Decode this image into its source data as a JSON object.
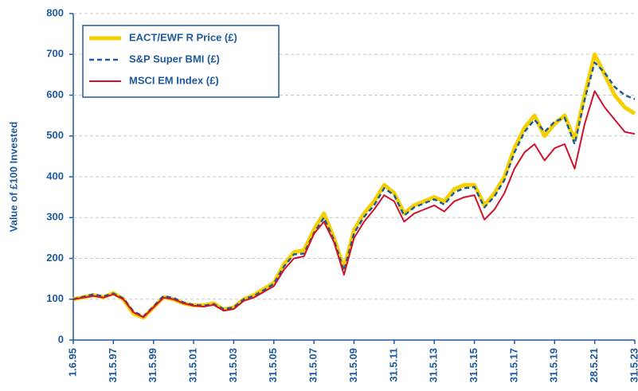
{
  "chart_data": {
    "type": "line",
    "ylabel": "Value of £100 Invested",
    "categories": [
      "1.6.95",
      null,
      null,
      null,
      "31.5.97",
      null,
      null,
      null,
      "31.5.99",
      null,
      null,
      null,
      "31.5.01",
      null,
      null,
      null,
      "31.5.03",
      null,
      null,
      null,
      "31.5.05",
      null,
      null,
      null,
      "31.5.07",
      null,
      null,
      null,
      "31.5.09",
      null,
      null,
      null,
      "31.5.11",
      null,
      null,
      null,
      "31.5.13",
      null,
      null,
      null,
      "31.5.15",
      null,
      null,
      null,
      "31.5.17",
      null,
      null,
      null,
      "31.5.19",
      null,
      null,
      null,
      "28.5.21",
      null,
      null,
      null,
      "31.5.23"
    ],
    "series": [
      {
        "name": "EACT/EWF R Price (£)",
        "color": "#f5cf00",
        "style": "solid",
        "width": 5,
        "values": [
          100,
          105,
          110,
          105,
          115,
          100,
          65,
          55,
          80,
          105,
          100,
          90,
          85,
          85,
          90,
          75,
          80,
          100,
          110,
          125,
          140,
          185,
          215,
          220,
          270,
          310,
          250,
          175,
          270,
          310,
          340,
          380,
          360,
          310,
          330,
          340,
          350,
          340,
          370,
          380,
          380,
          330,
          360,
          400,
          470,
          520,
          550,
          500,
          530,
          550,
          490,
          600,
          700,
          650,
          600,
          570,
          555
        ]
      },
      {
        "name": "S&P Super BMI (£)",
        "color": "#1f5c99",
        "style": "dashed",
        "width": 2.5,
        "values": [
          100,
          106,
          112,
          107,
          114,
          102,
          70,
          58,
          82,
          108,
          103,
          92,
          86,
          84,
          88,
          76,
          80,
          100,
          108,
          122,
          138,
          180,
          210,
          212,
          262,
          300,
          245,
          170,
          262,
          302,
          330,
          372,
          355,
          305,
          325,
          335,
          345,
          332,
          362,
          372,
          375,
          325,
          352,
          392,
          460,
          510,
          540,
          510,
          535,
          545,
          480,
          590,
          680,
          655,
          620,
          600,
          590
        ]
      },
      {
        "name": "MSCI EM Index (£)",
        "color": "#d0112b",
        "style": "solid",
        "width": 2,
        "values": [
          100,
          104,
          108,
          104,
          112,
          100,
          68,
          56,
          80,
          104,
          100,
          90,
          84,
          82,
          86,
          72,
          76,
          96,
          104,
          118,
          132,
          172,
          200,
          205,
          260,
          290,
          240,
          160,
          250,
          290,
          320,
          355,
          340,
          290,
          310,
          320,
          330,
          315,
          340,
          350,
          355,
          295,
          320,
          360,
          420,
          460,
          480,
          440,
          470,
          480,
          420,
          530,
          610,
          570,
          540,
          510,
          505
        ]
      }
    ],
    "ylim": [
      0,
      800
    ],
    "yticks": [
      0,
      100,
      200,
      300,
      400,
      500,
      600,
      700,
      800
    ],
    "grid": true,
    "legend": "upper left"
  }
}
